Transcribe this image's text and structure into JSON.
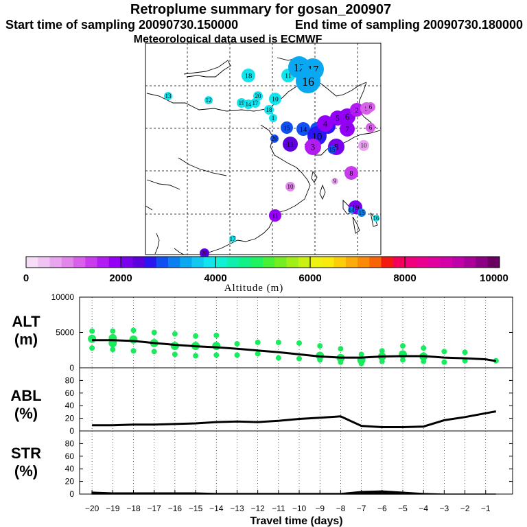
{
  "title": {
    "line1": "Retroplume summary for gosan_200907",
    "line2_left": "Start time of sampling 20090730.150000",
    "line2_right": "End time of sampling 20090730.180000",
    "line3": "Meteorological data used is ECMWF"
  },
  "colorbar": {
    "tick_labels": [
      "0",
      "2000",
      "4000",
      "6000",
      "8000",
      "10000"
    ],
    "label": "Altitude (m)",
    "colors": [
      "#f6dcf6",
      "#f0c4f2",
      "#e9a6ef",
      "#e286ec",
      "#d860ea",
      "#c93cee",
      "#b21cf2",
      "#9400f6",
      "#7a00ee",
      "#5e00de",
      "#2a16f0",
      "#1050f0",
      "#0a80f0",
      "#0aa8f0",
      "#10c8f0",
      "#12e4ee",
      "#10f0d2",
      "#10f0ac",
      "#10f286",
      "#20f260",
      "#48f036",
      "#74ee20",
      "#a2ee16",
      "#caf012",
      "#eef212",
      "#faea0c",
      "#fcce0a",
      "#fcac08",
      "#fc8a06",
      "#f86404",
      "#f21a10",
      "#f4005a",
      "#f0007c",
      "#ea0090",
      "#e000a0",
      "#d400a8",
      "#c000a8",
      "#a80098",
      "#8c0084",
      "#6a0060"
    ]
  },
  "map_labels": [
    {
      "id": "13",
      "color": "#12e4ee",
      "size": 6
    },
    {
      "id": "12",
      "color": "#12e4ee",
      "size": 6
    },
    {
      "id": "18",
      "color": "#12e4ee",
      "size": 10
    },
    {
      "id": "11",
      "color": "#12e4ee",
      "size": 10
    },
    {
      "id": "12",
      "color": "#0aa8f0",
      "size": 16
    },
    {
      "id": "17",
      "color": "#0aa8f0",
      "size": 16
    },
    {
      "id": "16",
      "color": "#0aa8f0",
      "size": 18
    },
    {
      "id": "19",
      "color": "#12e4ee",
      "size": 7
    },
    {
      "id": "14",
      "color": "#12e4ee",
      "size": 7
    },
    {
      "id": "17",
      "color": "#12e4ee",
      "size": 7
    },
    {
      "id": "20",
      "color": "#12e4ee",
      "size": 7
    },
    {
      "id": "10",
      "color": "#12e4ee",
      "size": 9
    },
    {
      "id": "18",
      "color": "#12e4ee",
      "size": 7
    },
    {
      "id": "1",
      "color": "#12e4ee",
      "size": 6
    },
    {
      "id": "15",
      "color": "#1050f0",
      "size": 9
    },
    {
      "id": "14",
      "color": "#1050f0",
      "size": 10
    },
    {
      "id": "13",
      "color": "#1050f0",
      "size": 10
    },
    {
      "id": "12",
      "color": "#2a16f0",
      "size": 11
    },
    {
      "id": "10",
      "color": "#2a16f0",
      "size": 14
    },
    {
      "id": "20",
      "color": "#1050f0",
      "size": 6
    },
    {
      "id": "11",
      "color": "#5e00de",
      "size": 11
    },
    {
      "id": "8",
      "color": "#7a00ee",
      "size": 12
    },
    {
      "id": "5",
      "color": "#9400f6",
      "size": 11
    },
    {
      "id": "6",
      "color": "#9400f6",
      "size": 12
    },
    {
      "id": "7",
      "color": "#9400f6",
      "size": 11
    },
    {
      "id": "4",
      "color": "#9400f6",
      "size": 12
    },
    {
      "id": "3",
      "color": "#b21cf2",
      "size": 12
    },
    {
      "id": "2",
      "color": "#b21cf2",
      "size": 10
    },
    {
      "id": "5",
      "color": "#d860ea",
      "size": 9
    },
    {
      "id": "6",
      "color": "#d860ea",
      "size": 7
    },
    {
      "id": "6",
      "color": "#d860ea",
      "size": 7
    },
    {
      "id": "10",
      "color": "#e9a6ef",
      "size": 8
    },
    {
      "id": "8",
      "color": "#c93cee",
      "size": 10
    },
    {
      "id": "9",
      "color": "#e9a6ef",
      "size": 5
    },
    {
      "id": "10",
      "color": "#e286ec",
      "size": 7
    },
    {
      "id": "11",
      "color": "#9400f6",
      "size": 9
    },
    {
      "id": "19",
      "color": "#7a00ee",
      "size": 10
    },
    {
      "id": "14",
      "color": "#0a80f0",
      "size": 5
    },
    {
      "id": "15",
      "color": "#0a80f0",
      "size": 6
    },
    {
      "id": "16",
      "color": "#12e4ee",
      "size": 5
    },
    {
      "id": "17",
      "color": "#12e4ee",
      "size": 5
    },
    {
      "id": "20",
      "color": "#5e00de",
      "size": 7
    },
    {
      "id": "15",
      "color": "#1050f0",
      "size": 6
    }
  ],
  "panels": {
    "alt_label": "ALT",
    "alt_unit": "(m)",
    "abl_label": "ABL",
    "str_label": "STR",
    "pct_unit": "(%)"
  },
  "chart_data": [
    {
      "type": "line",
      "name": "ALT",
      "x": [
        -20,
        -19,
        -18,
        -17,
        -16,
        -15,
        -14,
        -13,
        -12,
        -11,
        -10,
        -9,
        -8,
        -7,
        -6,
        -5,
        -4,
        -3,
        -2,
        -1,
        -0.5
      ],
      "values": [
        3900,
        3900,
        3800,
        3500,
        3250,
        3050,
        2900,
        2700,
        2450,
        2200,
        1900,
        1600,
        1450,
        1450,
        1600,
        1650,
        1650,
        1450,
        1350,
        1200,
        950
      ],
      "cluster_points": [
        {
          "x": -20,
          "y": [
            5200,
            4100,
            2800
          ]
        },
        {
          "x": -19,
          "y": [
            5200,
            4200,
            3500,
            2600
          ]
        },
        {
          "x": -18,
          "y": [
            5300,
            4000,
            2400
          ]
        },
        {
          "x": -17,
          "y": [
            5000,
            3500,
            2300
          ]
        },
        {
          "x": -16,
          "y": [
            4800,
            3100,
            1900
          ]
        },
        {
          "x": -15,
          "y": [
            4500,
            3100,
            1700
          ]
        },
        {
          "x": -14,
          "y": [
            4600,
            3100,
            1800
          ]
        },
        {
          "x": -13,
          "y": [
            3400,
            1800
          ]
        },
        {
          "x": -12,
          "y": [
            3600,
            2000
          ]
        },
        {
          "x": -11,
          "y": [
            3600,
            1400
          ]
        },
        {
          "x": -10,
          "y": [
            3500,
            1300
          ]
        },
        {
          "x": -9,
          "y": [
            3100,
            1700,
            1100
          ]
        },
        {
          "x": -8,
          "y": [
            2700,
            1400,
            800
          ]
        },
        {
          "x": -7,
          "y": [
            1900,
            1100,
            600
          ]
        },
        {
          "x": -6,
          "y": [
            2400,
            1600,
            900
          ]
        },
        {
          "x": -5,
          "y": [
            3100,
            1900,
            1100
          ]
        },
        {
          "x": -4,
          "y": [
            2800,
            1600,
            900
          ]
        },
        {
          "x": -3,
          "y": [
            2300,
            800
          ]
        },
        {
          "x": -2,
          "y": [
            2200,
            1000
          ]
        },
        {
          "x": -0.5,
          "y": [
            1000
          ]
        }
      ],
      "ylim": [
        0,
        10000
      ],
      "yticks": [
        0,
        5000,
        10000
      ],
      "ylabel": "ALT (m)"
    },
    {
      "type": "line",
      "name": "ABL",
      "x": [
        -20,
        -19,
        -18,
        -17,
        -16,
        -15,
        -14,
        -13,
        -12,
        -11,
        -10,
        -9,
        -8,
        -7,
        -6,
        -5,
        -4,
        -3,
        -2,
        -1,
        -0.5
      ],
      "values": [
        9,
        9,
        10,
        10,
        11,
        12,
        14,
        15,
        14,
        16,
        19,
        21,
        23,
        8,
        6,
        6,
        7,
        17,
        22,
        28,
        31
      ],
      "ylim": [
        0,
        100
      ],
      "yticks": [
        0,
        20,
        40,
        60,
        80
      ],
      "ylabel": "ABL (%)"
    },
    {
      "type": "area",
      "name": "STR",
      "x": [
        -20,
        -19,
        -18,
        -17,
        -16,
        -15,
        -14,
        -13,
        -12,
        -11,
        -10,
        -9,
        -8,
        -7,
        -6,
        -5,
        -4,
        -3,
        -2,
        -1,
        -0.5
      ],
      "values": [
        3,
        2,
        2,
        2,
        2,
        2,
        1,
        1,
        1,
        1,
        1,
        1,
        1,
        4,
        5,
        3,
        1,
        0,
        0,
        0,
        0
      ],
      "ylim": [
        0,
        100
      ],
      "yticks": [
        0,
        20,
        40,
        60,
        80
      ],
      "ylabel": "STR (%)",
      "xlabel": "Travel time (days)",
      "xticks": [
        -20,
        -19,
        -18,
        -17,
        -16,
        -15,
        -14,
        -13,
        -12,
        -11,
        -10,
        -9,
        -8,
        -7,
        -6,
        -5,
        -4,
        -3,
        -2,
        -1
      ]
    }
  ]
}
